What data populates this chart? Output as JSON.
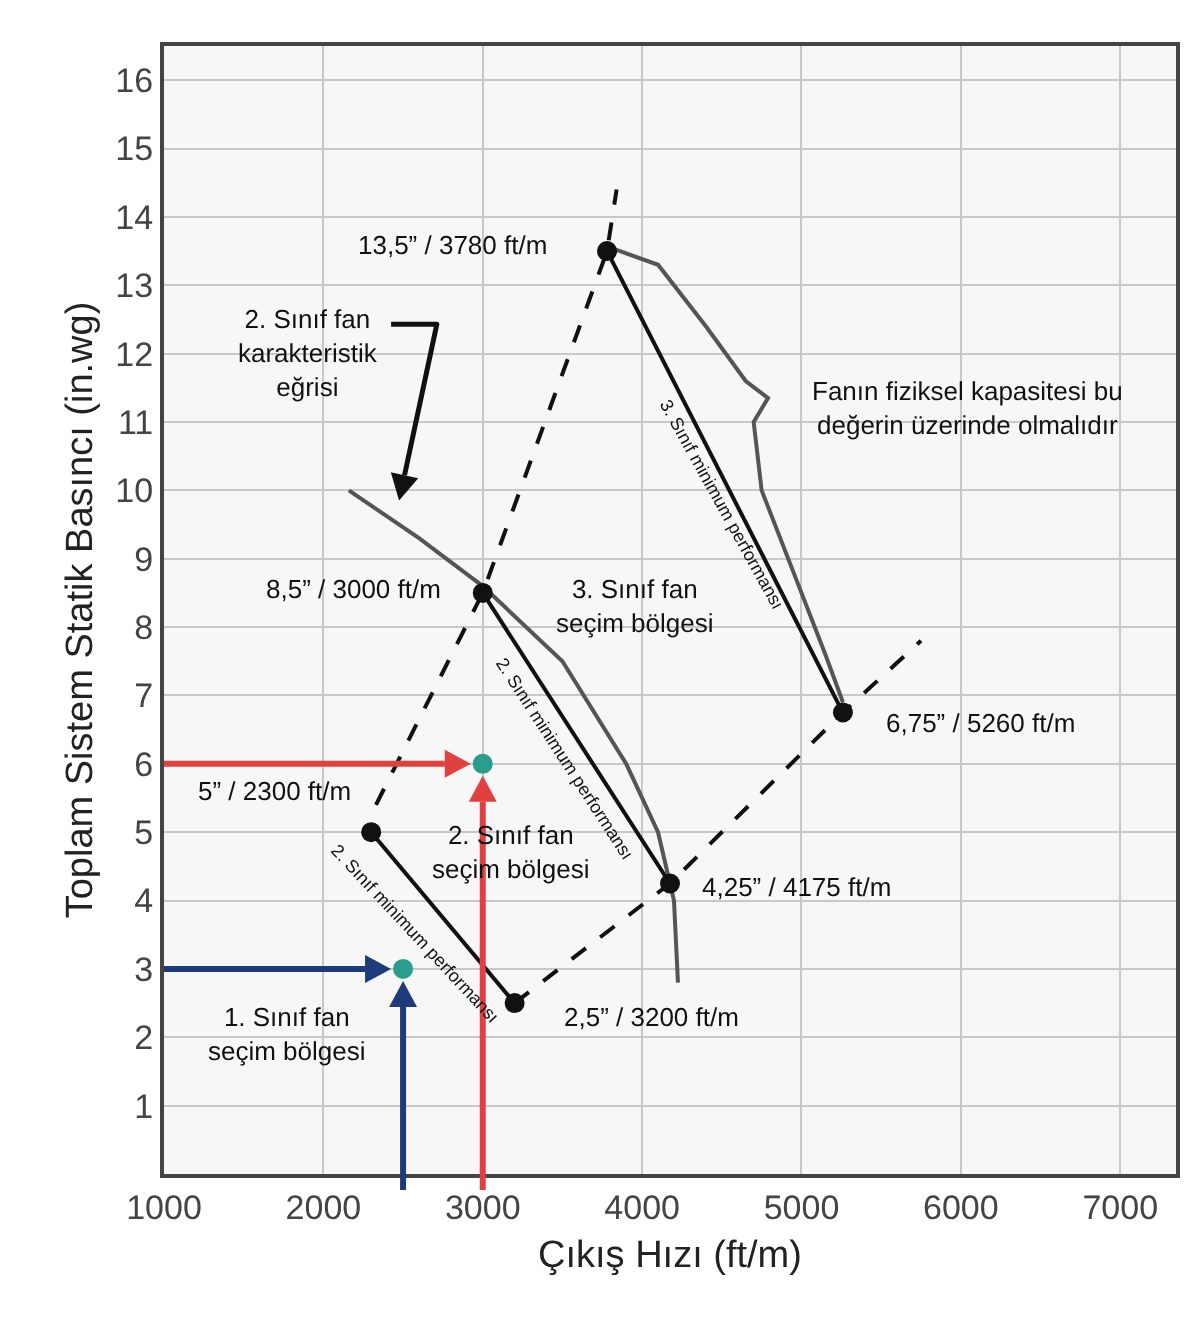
{
  "chart_data": {
    "type": "line",
    "xlabel": "Çıkış Hızı (ft/m)",
    "ylabel": "Toplam Sistem Statik Basıncı (in.wg)",
    "xlim": [
      1000,
      7350
    ],
    "ylim": [
      0,
      16.5
    ],
    "xticks": [
      1000,
      2000,
      3000,
      4000,
      5000,
      6000,
      7000
    ],
    "yticks": [
      1,
      2,
      3,
      4,
      5,
      6,
      7,
      8,
      9,
      10,
      11,
      12,
      13,
      14,
      15,
      16
    ],
    "grid": true,
    "series": [
      {
        "color": "#111111",
        "line_style": "dashed",
        "marker": "none",
        "x": [
          2330,
          3000,
          3780,
          3840
        ],
        "values": [
          5.4,
          8.5,
          13.5,
          14.4
        ]
      },
      {
        "color": "#111111",
        "line_style": "dashed",
        "marker": "none",
        "x": [
          3200,
          4175,
          5260,
          5750
        ],
        "values": [
          2.5,
          4.25,
          6.75,
          7.8
        ]
      },
      {
        "color": "#111111",
        "line_style": "solid",
        "marker": "none",
        "x": [
          2300,
          3200
        ],
        "values": [
          5,
          2.5
        ]
      },
      {
        "color": "#111111",
        "line_style": "solid",
        "marker": "none",
        "x": [
          3000,
          4175
        ],
        "values": [
          8.5,
          4.25
        ]
      },
      {
        "color": "#111111",
        "line_style": "solid",
        "marker": "none",
        "x": [
          3780,
          5260
        ],
        "values": [
          13.5,
          6.75
        ]
      },
      {
        "color": "#555555",
        "line_style": "solid",
        "marker": "none",
        "x": [
          2160,
          2600,
          3000,
          3500,
          3900,
          4100,
          4200,
          4225
        ],
        "values": [
          10,
          9.3,
          8.6,
          7.5,
          6,
          5,
          4,
          2.8
        ]
      },
      {
        "color": "#555555",
        "line_style": "solid",
        "marker": "none",
        "x": [
          3800,
          4100,
          4400,
          4650,
          4790,
          4700,
          4750,
          4950,
          5150,
          5260
        ],
        "values": [
          13.55,
          13.3,
          12.4,
          11.6,
          11.35,
          11,
          10,
          8.8,
          7.6,
          6.9
        ]
      },
      {
        "type": "scatter",
        "color": "#111111",
        "marker": "circle",
        "x": [
          2300,
          3200,
          3000,
          4175,
          3780,
          5260
        ],
        "values": [
          5,
          2.5,
          8.5,
          4.25,
          13.5,
          6.75
        ]
      },
      {
        "type": "scatter",
        "color": "#2a9d8f",
        "marker": "circle",
        "x": [
          2500,
          3000
        ],
        "values": [
          3,
          6
        ]
      }
    ],
    "annotations": [
      "13,5” / 3780 ft/m",
      "2. Sınıf fan\nkarakteristik\neğrisi",
      "Fanın fiziksel kapasitesi bu\ndeğerin üzerinde olmalıdır",
      "8,5” / 3000 ft/m",
      "3. Sınıf fan\nseçim bölgesi",
      "3. Sınıf minimum performansı",
      "6,75” / 5260 ft/m",
      "5” / 2300 ft/m",
      "2. Sınıf fan\nseçim bölgesi",
      "2. Sınıf minimum performansı",
      "2. Sınıf minimum performansı",
      "4,25” / 4175 ft/m",
      "2,5” / 3200 ft/m",
      "1. Sınıf fan\nseçim bölgesi"
    ]
  }
}
